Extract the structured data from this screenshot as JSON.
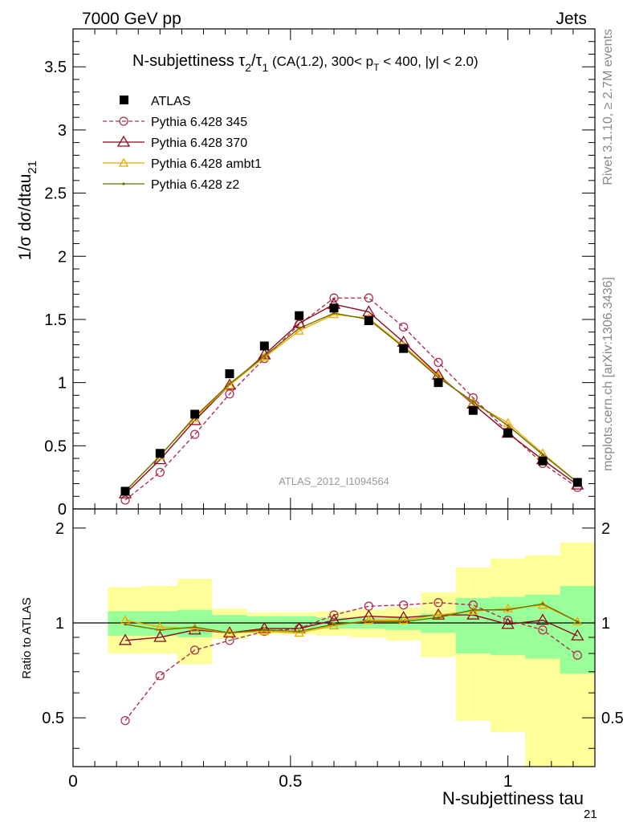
{
  "header": {
    "left": "7000 GeV pp",
    "right": "Jets"
  },
  "side_labels": {
    "rivet": "Rivet 3.1.10, ≥ 2.7M events",
    "mcplots": "mcplots.cern.ch [arXiv:1306.3436]"
  },
  "colors": {
    "atlas": "#000000",
    "p345": "#b03050",
    "p370": "#8b0a1e",
    "ambt1": "#f0a800",
    "z2": "#6b7000",
    "band_inner": "#99ff99",
    "band_outer": "#ffff99"
  },
  "chart_data": [
    {
      "type": "scatter",
      "title": "N-subjettiness τ₂/τ₁ (CA(1.2), 300< p_T < 400, |y| < 2.0)",
      "title_parts": {
        "main": "N-subjettiness ",
        "tau": "τ",
        "sub2": "2",
        "slash": "/",
        "sub1": "1",
        "cond_a": " (CA(1.2), 300< p",
        "subT": "T",
        "cond_b": " < 400, |y| < 2.0)"
      },
      "ylabel": "1/σ dσ/dtau",
      "ylabel_sub": "21",
      "xlim": [
        0,
        1.2
      ],
      "ylim": [
        0,
        3.8
      ],
      "yticks": [
        0,
        0.5,
        1,
        1.5,
        2,
        2.5,
        3,
        3.5
      ],
      "watermark": "ATLAS_2012_I1094564",
      "x": [
        0.12,
        0.2,
        0.28,
        0.36,
        0.44,
        0.52,
        0.6,
        0.68,
        0.76,
        0.84,
        0.92,
        1.0,
        1.08,
        1.16
      ],
      "series": [
        {
          "name": "ATLAS",
          "values": [
            0.14,
            0.44,
            0.75,
            1.07,
            1.29,
            1.53,
            1.59,
            1.49,
            1.27,
            1.0,
            0.78,
            0.6,
            0.38,
            0.21
          ]
        },
        {
          "name": "Pythia 6.428 345",
          "values": [
            0.07,
            0.29,
            0.59,
            0.91,
            1.19,
            1.46,
            1.67,
            1.67,
            1.44,
            1.16,
            0.88,
            0.61,
            0.36,
            0.17
          ]
        },
        {
          "name": "Pythia 6.428 370",
          "values": [
            0.12,
            0.39,
            0.7,
            0.98,
            1.22,
            1.47,
            1.62,
            1.56,
            1.32,
            1.06,
            0.83,
            0.6,
            0.39,
            0.19
          ]
        },
        {
          "name": "Pythia 6.428 ambt1",
          "values": [
            0.14,
            0.42,
            0.72,
            0.98,
            1.2,
            1.41,
            1.54,
            1.51,
            1.29,
            1.05,
            0.84,
            0.68,
            0.44,
            0.21
          ]
        },
        {
          "name": "Pythia 6.428 z2",
          "values": [
            0.14,
            0.42,
            0.73,
            0.99,
            1.21,
            1.43,
            1.55,
            1.5,
            1.28,
            1.04,
            0.85,
            0.66,
            0.43,
            0.21
          ]
        }
      ]
    },
    {
      "type": "line",
      "ylabel": "Ratio to ATLAS",
      "xlabel": "N-subjettiness tau",
      "xlabel_sub": "21",
      "xlim": [
        0,
        1.2
      ],
      "ylim": [
        0.35,
        2.3
      ],
      "xticks": [
        0,
        0.5,
        1
      ],
      "yticks": [
        0.5,
        1,
        2
      ],
      "x": [
        0.12,
        0.2,
        0.28,
        0.36,
        0.44,
        0.52,
        0.6,
        0.68,
        0.76,
        0.84,
        0.92,
        1.0,
        1.08,
        1.16
      ],
      "bin_edges": [
        0.08,
        0.16,
        0.24,
        0.32,
        0.4,
        0.48,
        0.56,
        0.64,
        0.72,
        0.8,
        0.88,
        0.96,
        1.04,
        1.12,
        1.2
      ],
      "band_inner": [
        [
          0.91,
          1.09
        ],
        [
          0.91,
          1.09
        ],
        [
          0.9,
          1.1
        ],
        [
          0.94,
          1.06
        ],
        [
          0.95,
          1.05
        ],
        [
          0.95,
          1.05
        ],
        [
          0.96,
          1.04
        ],
        [
          0.96,
          1.04
        ],
        [
          0.95,
          1.05
        ],
        [
          0.93,
          1.07
        ],
        [
          0.8,
          1.2
        ],
        [
          0.79,
          1.21
        ],
        [
          0.77,
          1.23
        ],
        [
          0.69,
          1.31
        ],
        [
          0.59,
          1.6
        ]
      ],
      "band_outer": [
        [
          0.8,
          1.3
        ],
        [
          0.8,
          1.31
        ],
        [
          0.74,
          1.38
        ],
        [
          0.89,
          1.11
        ],
        [
          0.92,
          1.08
        ],
        [
          0.92,
          1.08
        ],
        [
          0.91,
          1.09
        ],
        [
          0.9,
          1.1
        ],
        [
          0.88,
          1.12
        ],
        [
          0.78,
          1.25
        ],
        [
          0.49,
          1.5
        ],
        [
          0.45,
          1.6
        ],
        [
          0.35,
          1.64
        ],
        [
          0.35,
          1.8
        ],
        [
          0.35,
          2.02
        ]
      ],
      "series": [
        {
          "name": "Pythia 6.428 345",
          "values": [
            0.49,
            0.68,
            0.82,
            0.88,
            0.94,
            0.96,
            1.06,
            1.13,
            1.14,
            1.16,
            1.14,
            1.02,
            0.95,
            0.79
          ]
        },
        {
          "name": "Pythia 6.428 370",
          "values": [
            0.88,
            0.9,
            0.95,
            0.93,
            0.96,
            0.96,
            1.02,
            1.05,
            1.04,
            1.06,
            1.06,
            0.99,
            1.02,
            0.91
          ]
        },
        {
          "name": "Pythia 6.428 ambt1",
          "values": [
            1.02,
            0.97,
            0.96,
            0.93,
            0.94,
            0.93,
            0.98,
            1.02,
            1.02,
            1.06,
            1.09,
            1.11,
            1.14,
            1.01
          ]
        },
        {
          "name": "Pythia 6.428 z2",
          "values": [
            0.99,
            0.95,
            0.97,
            0.93,
            0.95,
            0.94,
            0.99,
            1.01,
            1.01,
            1.04,
            1.1,
            1.1,
            1.15,
            1.01
          ]
        }
      ]
    }
  ]
}
